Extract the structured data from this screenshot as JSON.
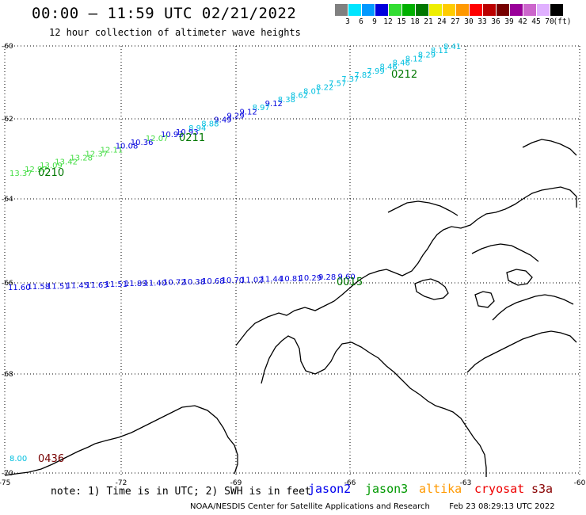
{
  "header": {
    "title": "00:00 – 11:59 UTC 02/21/2022",
    "subtitle": "12 hour collection of altimeter wave heights"
  },
  "color_scale": {
    "labels": [
      "3",
      "6",
      "9",
      "12",
      "15",
      "18",
      "21",
      "24",
      "27",
      "30",
      "33",
      "36",
      "39",
      "42",
      "45",
      "70",
      "(ft)"
    ],
    "colors": [
      "#808080",
      "#00e5ff",
      "#0099ff",
      "#0000dd",
      "#33dd33",
      "#00b000",
      "#007700",
      "#eeee00",
      "#ffcc00",
      "#ff9900",
      "#ff0000",
      "#bb0000",
      "#770000",
      "#990099",
      "#cc66cc",
      "#e0b0ff",
      "#000000"
    ]
  },
  "map": {
    "lat_labels": [
      "-60",
      "-62",
      "-64",
      "-66",
      "-68",
      "-70"
    ],
    "lon_labels": [
      "-75",
      "-72",
      "-69",
      "-66",
      "-63",
      "-60"
    ],
    "tracks": [
      {
        "time": "0212",
        "time_color": "#007700",
        "values": [
          "8.41",
          "8.11",
          "8.29",
          "8.12",
          "8.46",
          "8.46",
          "7.99",
          "7.82",
          "7.37",
          "7.57",
          "8.22",
          "8.01",
          "8.62",
          "8.38",
          "9.12",
          "8.97",
          "9.12",
          "9.29",
          "9.49",
          "8.88",
          "8.94",
          "10.93"
        ]
      },
      {
        "time": "0211",
        "time_color": "#007700",
        "values": [
          "10.93",
          "12.07",
          "10.36",
          "10.08",
          "12.11",
          "12.37",
          "13.28",
          "13.42",
          "13.09",
          "12.97",
          "13.37"
        ]
      },
      {
        "time": "0210",
        "time_color": "#007700",
        "values": [
          "13.37"
        ]
      },
      {
        "time": "0015",
        "time_color": "#007700",
        "values": [
          "11.60",
          "11.58",
          "11.51",
          "11.45",
          "11.63",
          "11.51",
          "11.89",
          "11.40",
          "10.72",
          "10.38",
          "10.68",
          "10.70",
          "11.02",
          "11.44",
          "10.81",
          "10.29",
          "9.28",
          "9.60"
        ]
      },
      {
        "time": "0436",
        "time_color": "#770000",
        "values": [
          "8.00"
        ]
      }
    ],
    "time_labels": [
      "0212",
      "0211",
      "0210",
      "0015",
      "0436"
    ]
  },
  "note": "note: 1) Time is in UTC; 2) SWH is in feet",
  "satellites": [
    {
      "name": "jason2",
      "color": "#0000ee"
    },
    {
      "name": "jason3",
      "color": "#009900"
    },
    {
      "name": "altika",
      "color": "#ff9900"
    },
    {
      "name": "cryosat",
      "color": "#ee0000"
    },
    {
      "name": "s3a",
      "color": "#880000"
    }
  ],
  "footer": {
    "org": "NOAA/NESDIS Center for Satellite Applications and Research",
    "timestamp": "Feb 23 08:29:13 UTC 2022"
  }
}
